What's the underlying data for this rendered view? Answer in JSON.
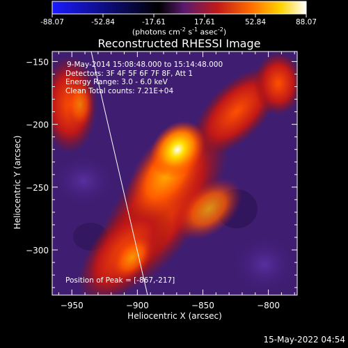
{
  "colorbar": {
    "ticks": [
      "-88.07",
      "-52.84",
      "-17.61",
      "17.61",
      "52.84",
      "88.07"
    ],
    "unit_label": "(photons cm",
    "unit_sup1": "-2",
    "unit_mid1": " s",
    "unit_sup2": "-1",
    "unit_mid2": " asec",
    "unit_sup3": "-2",
    "unit_end": ")",
    "colors": [
      "#1a1aff",
      "#000000",
      "#5a1a6e",
      "#c01a1a",
      "#ff6a00",
      "#ffd400",
      "#ffffff"
    ]
  },
  "plot": {
    "title": "Reconstructed RHESSI Image",
    "xlabel": "Heliocentric X (arcsec)",
    "ylabel": "Heliocentric Y (arcsec)",
    "xticks": [
      "-950",
      "-900",
      "-850",
      "-800"
    ],
    "yticks": [
      "-150",
      "-200",
      "-250",
      "-300"
    ],
    "xlim": [
      -965,
      -778
    ],
    "ylim": [
      -336,
      -142
    ],
    "info": [
      "9-May-2014 15:08:48.000 to 15:14:48.000",
      "Detectors: 3F 4F 5F 6F 7F 8F, Att 1",
      "Energy Range: 3.0 - 6.0 keV",
      "Clean    Total counts: 7.21E+04"
    ],
    "peak_label": "Position of Peak = [-867,-217]"
  },
  "footer": {
    "date": "15-May-2022 04:54"
  }
}
